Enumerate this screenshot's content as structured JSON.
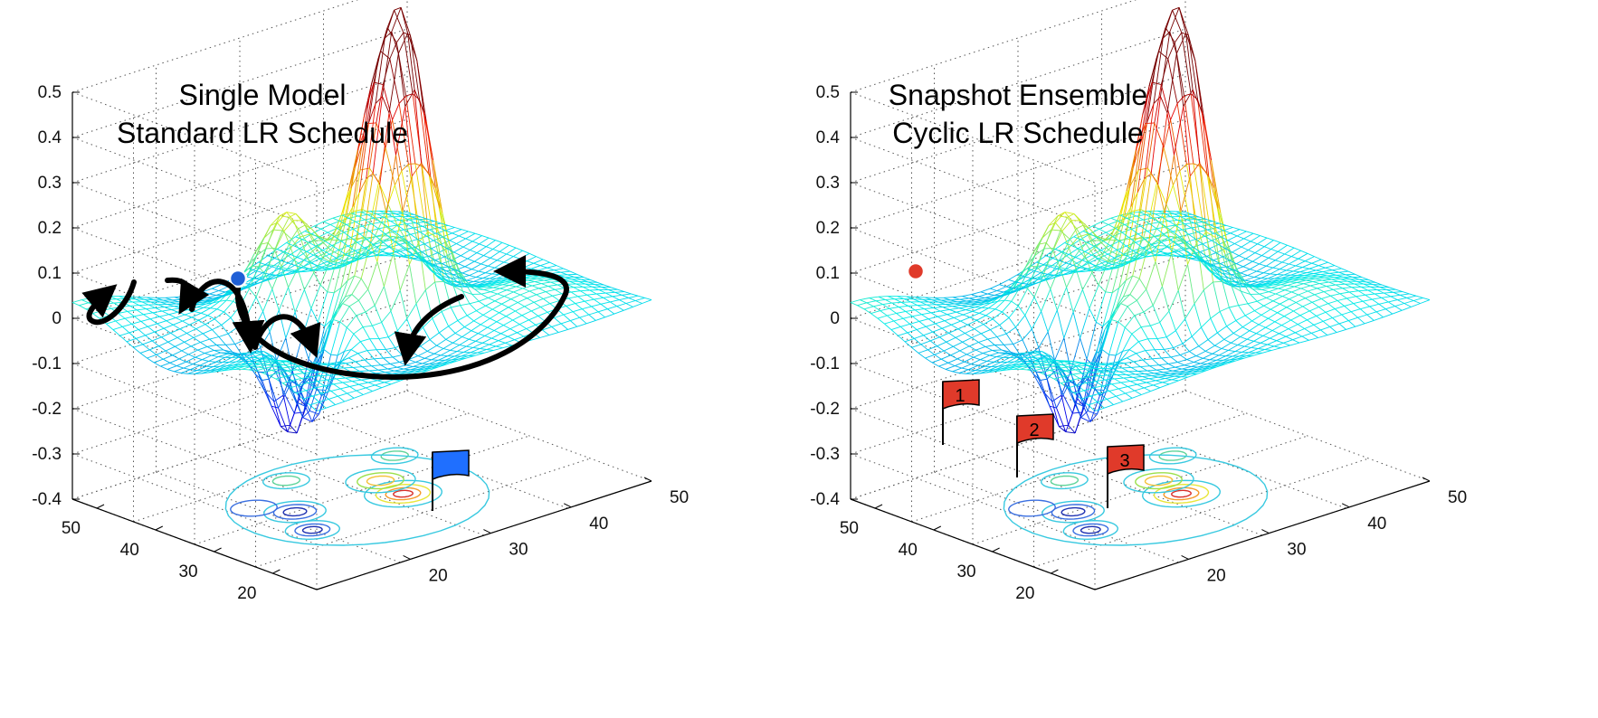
{
  "chart_data": [
    {
      "type": "surface",
      "panel": "left",
      "title_lines": [
        "Single Model",
        "Standard LR Schedule"
      ],
      "zlim": [
        -0.4,
        0.5
      ],
      "z_ticks": [
        "0.5",
        "0.4",
        "0.3",
        "0.2",
        "0.1",
        "0",
        "-0.1",
        "-0.2",
        "-0.3",
        "-0.4"
      ],
      "y_ticks": [
        "50",
        "40",
        "30",
        "20"
      ],
      "x_ticks": [
        "50",
        "40",
        "30",
        "20"
      ],
      "grid": true,
      "start_marker_color": "#1f5fd6",
      "trajectory": "single long arc to one minimum",
      "flags": [
        {
          "label": "",
          "color": "#1f6fff"
        }
      ]
    },
    {
      "type": "surface",
      "panel": "right",
      "title_lines": [
        "Snapshot Ensemble",
        "Cyclic LR Schedule"
      ],
      "zlim": [
        -0.4,
        0.5
      ],
      "z_ticks": [
        "0.5",
        "0.4",
        "0.3",
        "0.2",
        "0.1",
        "0",
        "-0.1",
        "-0.2",
        "-0.3",
        "-0.4"
      ],
      "y_ticks": [
        "50",
        "40",
        "30",
        "20"
      ],
      "x_ticks": [
        "50",
        "40",
        "30",
        "20"
      ],
      "grid": true,
      "start_marker_color": "#e03a2a",
      "trajectory": "several short hops visiting multiple minima",
      "flags": [
        {
          "label": "1",
          "color": "#e03a2a"
        },
        {
          "label": "2",
          "color": "#e03a2a"
        },
        {
          "label": "3",
          "color": "#e03a2a"
        }
      ]
    }
  ]
}
